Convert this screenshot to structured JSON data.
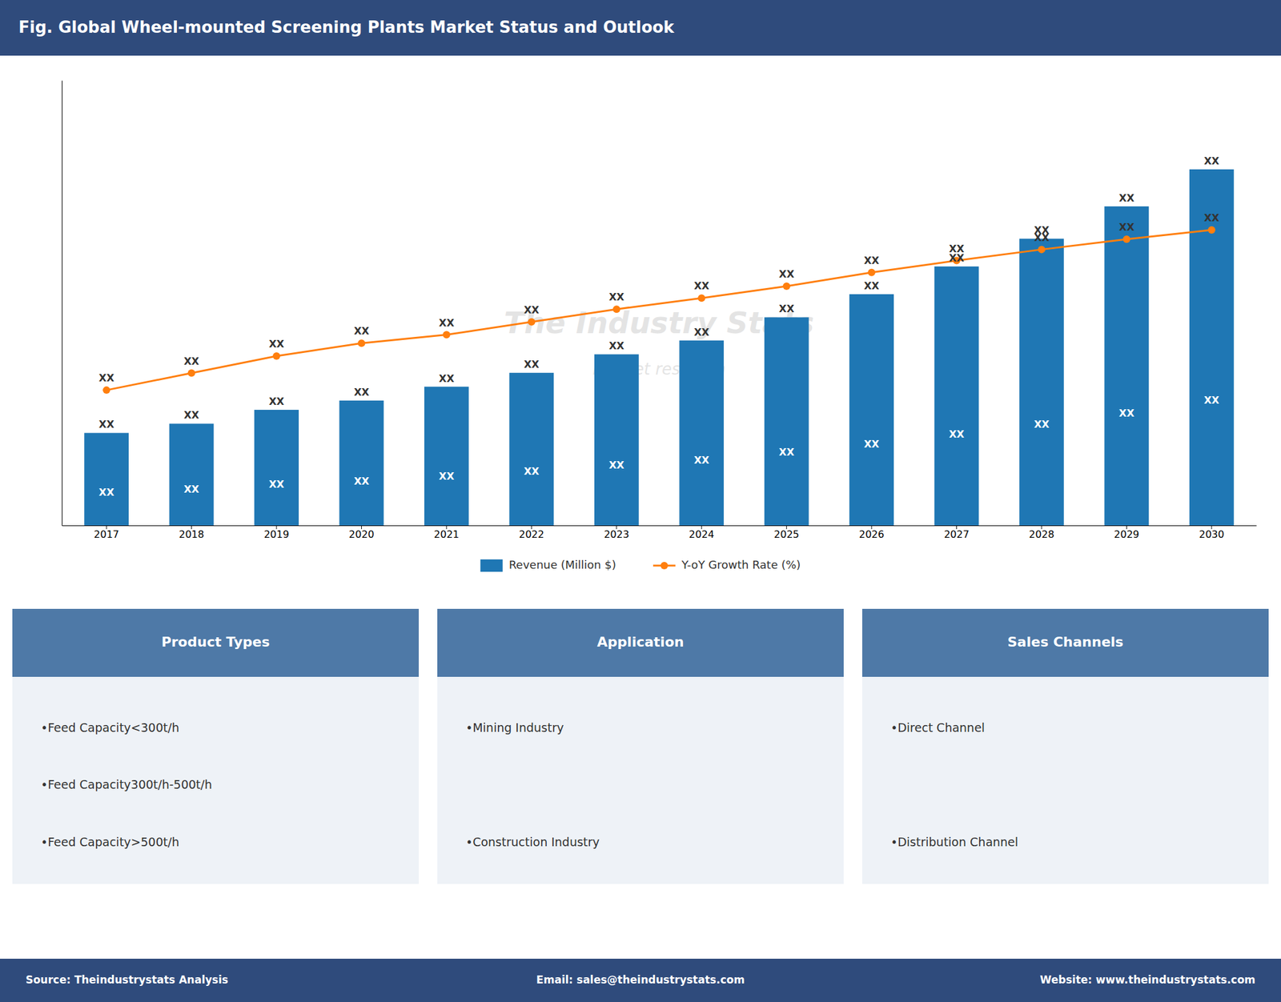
{
  "chart_data": {
    "type": "bar",
    "title": "Fig. Global Wheel-mounted Screening Plants Market Status and Outlook",
    "categories": [
      "2017",
      "2018",
      "2019",
      "2020",
      "2021",
      "2022",
      "2023",
      "2024",
      "2025",
      "2026",
      "2027",
      "2028",
      "2029",
      "2030"
    ],
    "series": [
      {
        "name": "Revenue (Million $)",
        "type": "bar",
        "values": [
          2.0,
          2.2,
          2.5,
          2.7,
          3.0,
          3.3,
          3.7,
          4.0,
          4.5,
          5.0,
          5.6,
          6.2,
          6.9,
          7.7
        ],
        "value_labels": [
          "XX",
          "XX",
          "XX",
          "XX",
          "XX",
          "XX",
          "XX",
          "XX",
          "XX",
          "XX",
          "XX",
          "XX",
          "XX",
          "XX"
        ]
      },
      {
        "name": "Y-oY Growth Rate (%)",
        "type": "line",
        "marker": "circle",
        "values": [
          2.926,
          3.2946,
          3.6632,
          3.9397,
          4.124,
          4.4005,
          4.6769,
          4.9165,
          5.1746,
          5.4695,
          5.7275,
          5.9671,
          6.1883,
          6.391
        ],
        "value_labels": [
          "XX",
          "XX",
          "XX",
          "XX",
          "XX",
          "XX",
          "XX",
          "XX",
          "XX",
          "XX",
          "XX",
          "XX",
          "XX",
          "XX"
        ]
      }
    ],
    "ylim": [
      0,
      9.625
    ],
    "yticks": [],
    "tick_labels": "x",
    "legend": "bottom",
    "annotations": [
      "The Industry Stats",
      "market  research"
    ]
  },
  "panels": [
    {
      "title": "Product Types",
      "items": [
        "•Feed Capacity<300t/h",
        "•Feed Capacity300t/h-500t/h",
        "•Feed Capacity>500t/h"
      ]
    },
    {
      "title": "Application",
      "items": [
        "•Mining Industry",
        "•Construction Industry"
      ]
    },
    {
      "title": "Sales Channels",
      "items": [
        "•Direct Channel",
        "•Distribution Channel"
      ]
    }
  ],
  "footer": [
    "Source: Theindustrystats Analysis",
    "Email: sales@theindustrystats.com",
    "Website: www.theindustrystats.com"
  ]
}
